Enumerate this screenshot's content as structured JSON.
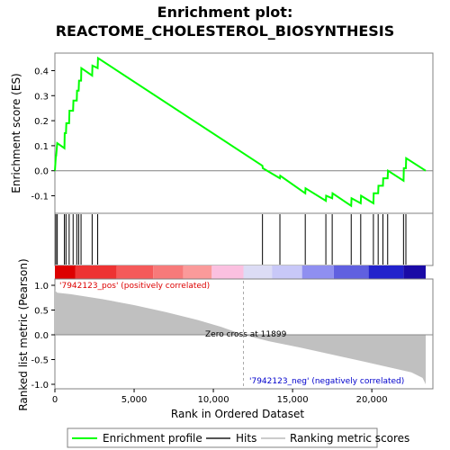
{
  "chart_data": {
    "type": "line",
    "title_line1": "Enrichment plot:",
    "title_line2": "REACTOME_CHOLESTEROL_BIOSYNTHESIS",
    "top_panel": {
      "ylabel": "Enrichment score (ES)",
      "ylim": [
        -0.17,
        0.47
      ],
      "yticks": [
        -0.1,
        0.0,
        0.1,
        0.2,
        0.3,
        0.4
      ],
      "ytick_labels": [
        "-0.1",
        "0.0",
        "0.1",
        "0.2",
        "0.3",
        "0.4"
      ],
      "series": [
        {
          "name": "Enrichment profile",
          "color": "#00ff00",
          "x": [
            0,
            60,
            80,
            150,
            600,
            620,
            700,
            720,
            900,
            920,
            1150,
            1170,
            1380,
            1400,
            1500,
            1520,
            1650,
            1670,
            2350,
            2370,
            2700,
            2720,
            13100,
            13120,
            14200,
            14220,
            15800,
            15820,
            17100,
            17120,
            17500,
            17520,
            18700,
            18720,
            19300,
            19320,
            20100,
            20120,
            20400,
            20420,
            20700,
            20720,
            21000,
            21020,
            22000,
            22020,
            22150,
            22170,
            23400
          ],
          "y": [
            0.0,
            0.06,
            0.06,
            0.11,
            0.09,
            0.15,
            0.15,
            0.19,
            0.19,
            0.24,
            0.24,
            0.28,
            0.28,
            0.32,
            0.32,
            0.36,
            0.36,
            0.41,
            0.38,
            0.42,
            0.41,
            0.45,
            0.02,
            0.01,
            -0.03,
            -0.02,
            -0.09,
            -0.07,
            -0.12,
            -0.1,
            -0.11,
            -0.09,
            -0.14,
            -0.11,
            -0.13,
            -0.1,
            -0.13,
            -0.09,
            -0.09,
            -0.06,
            -0.06,
            -0.03,
            -0.03,
            0.0,
            -0.04,
            0.01,
            0.01,
            0.05,
            0.0
          ]
        }
      ],
      "zero_line": 0.0
    },
    "hits": [
      60,
      150,
      600,
      700,
      900,
      1150,
      1380,
      1500,
      1650,
      2350,
      2700,
      13100,
      14200,
      15800,
      17100,
      17500,
      18700,
      19300,
      20100,
      20400,
      20700,
      21000,
      22000,
      22150
    ],
    "color_bar": {
      "segments": [
        {
          "x0": 0,
          "x1": 1300,
          "color": "#dd0000"
        },
        {
          "x0": 1300,
          "x1": 3900,
          "color": "#ee3333"
        },
        {
          "x0": 3900,
          "x1": 6200,
          "color": "#f55a5a"
        },
        {
          "x0": 6200,
          "x1": 8100,
          "color": "#f77a7a"
        },
        {
          "x0": 8100,
          "x1": 9900,
          "color": "#fa9a9a"
        },
        {
          "x0": 9900,
          "x1": 11900,
          "color": "#fbc0e0"
        },
        {
          "x0": 11900,
          "x1": 13700,
          "color": "#dcdcf5"
        },
        {
          "x0": 13700,
          "x1": 15600,
          "color": "#c8c8f8"
        },
        {
          "x0": 15600,
          "x1": 17600,
          "color": "#8f8ff0"
        },
        {
          "x0": 17600,
          "x1": 19800,
          "color": "#6060e0"
        },
        {
          "x0": 19800,
          "x1": 22000,
          "color": "#2222cc"
        },
        {
          "x0": 22000,
          "x1": 23400,
          "color": "#1a0aa6"
        }
      ]
    },
    "bottom_panel": {
      "ylabel": "Ranked list metric (Pearson)",
      "xlabel": "Rank in Ordered Dataset",
      "ylim": [
        -1.0,
        1.0
      ],
      "yticks": [
        -1.0,
        -0.5,
        0.0,
        0.5,
        1.0
      ],
      "ytick_labels": [
        "-1.0",
        "-0.5",
        "0.0",
        "0.5",
        "1.0"
      ],
      "xlim": [
        0,
        23400
      ],
      "xticks": [
        0,
        5000,
        10000,
        15000,
        20000
      ],
      "xtick_labels": [
        "0",
        "5,000",
        "10,000",
        "15,000",
        "20,000"
      ],
      "metric_x": [
        0,
        150,
        1000,
        3000,
        5000,
        7000,
        9000,
        10500,
        11899,
        13500,
        15500,
        17500,
        19500,
        21000,
        22500,
        23200,
        23400
      ],
      "metric_y": [
        0.9,
        0.85,
        0.82,
        0.72,
        0.6,
        0.46,
        0.3,
        0.16,
        0.0,
        -0.13,
        -0.26,
        -0.4,
        -0.54,
        -0.65,
        -0.76,
        -0.87,
        -1.0
      ],
      "zero_cross_x": 11899,
      "annotations": {
        "pos_label": "'7942123_pos' (positively correlated)",
        "neg_label": "'7942123_neg' (negatively correlated)",
        "zero_cross": "Zero cross at 11899",
        "pos_color": "#dd0000",
        "neg_color": "#0000cc"
      }
    },
    "legend": {
      "items": [
        {
          "label": "Enrichment profile",
          "color": "#00ff00"
        },
        {
          "label": "Hits",
          "color": "#555555"
        },
        {
          "label": "Ranking metric scores",
          "color": "#cccccc"
        }
      ]
    }
  }
}
